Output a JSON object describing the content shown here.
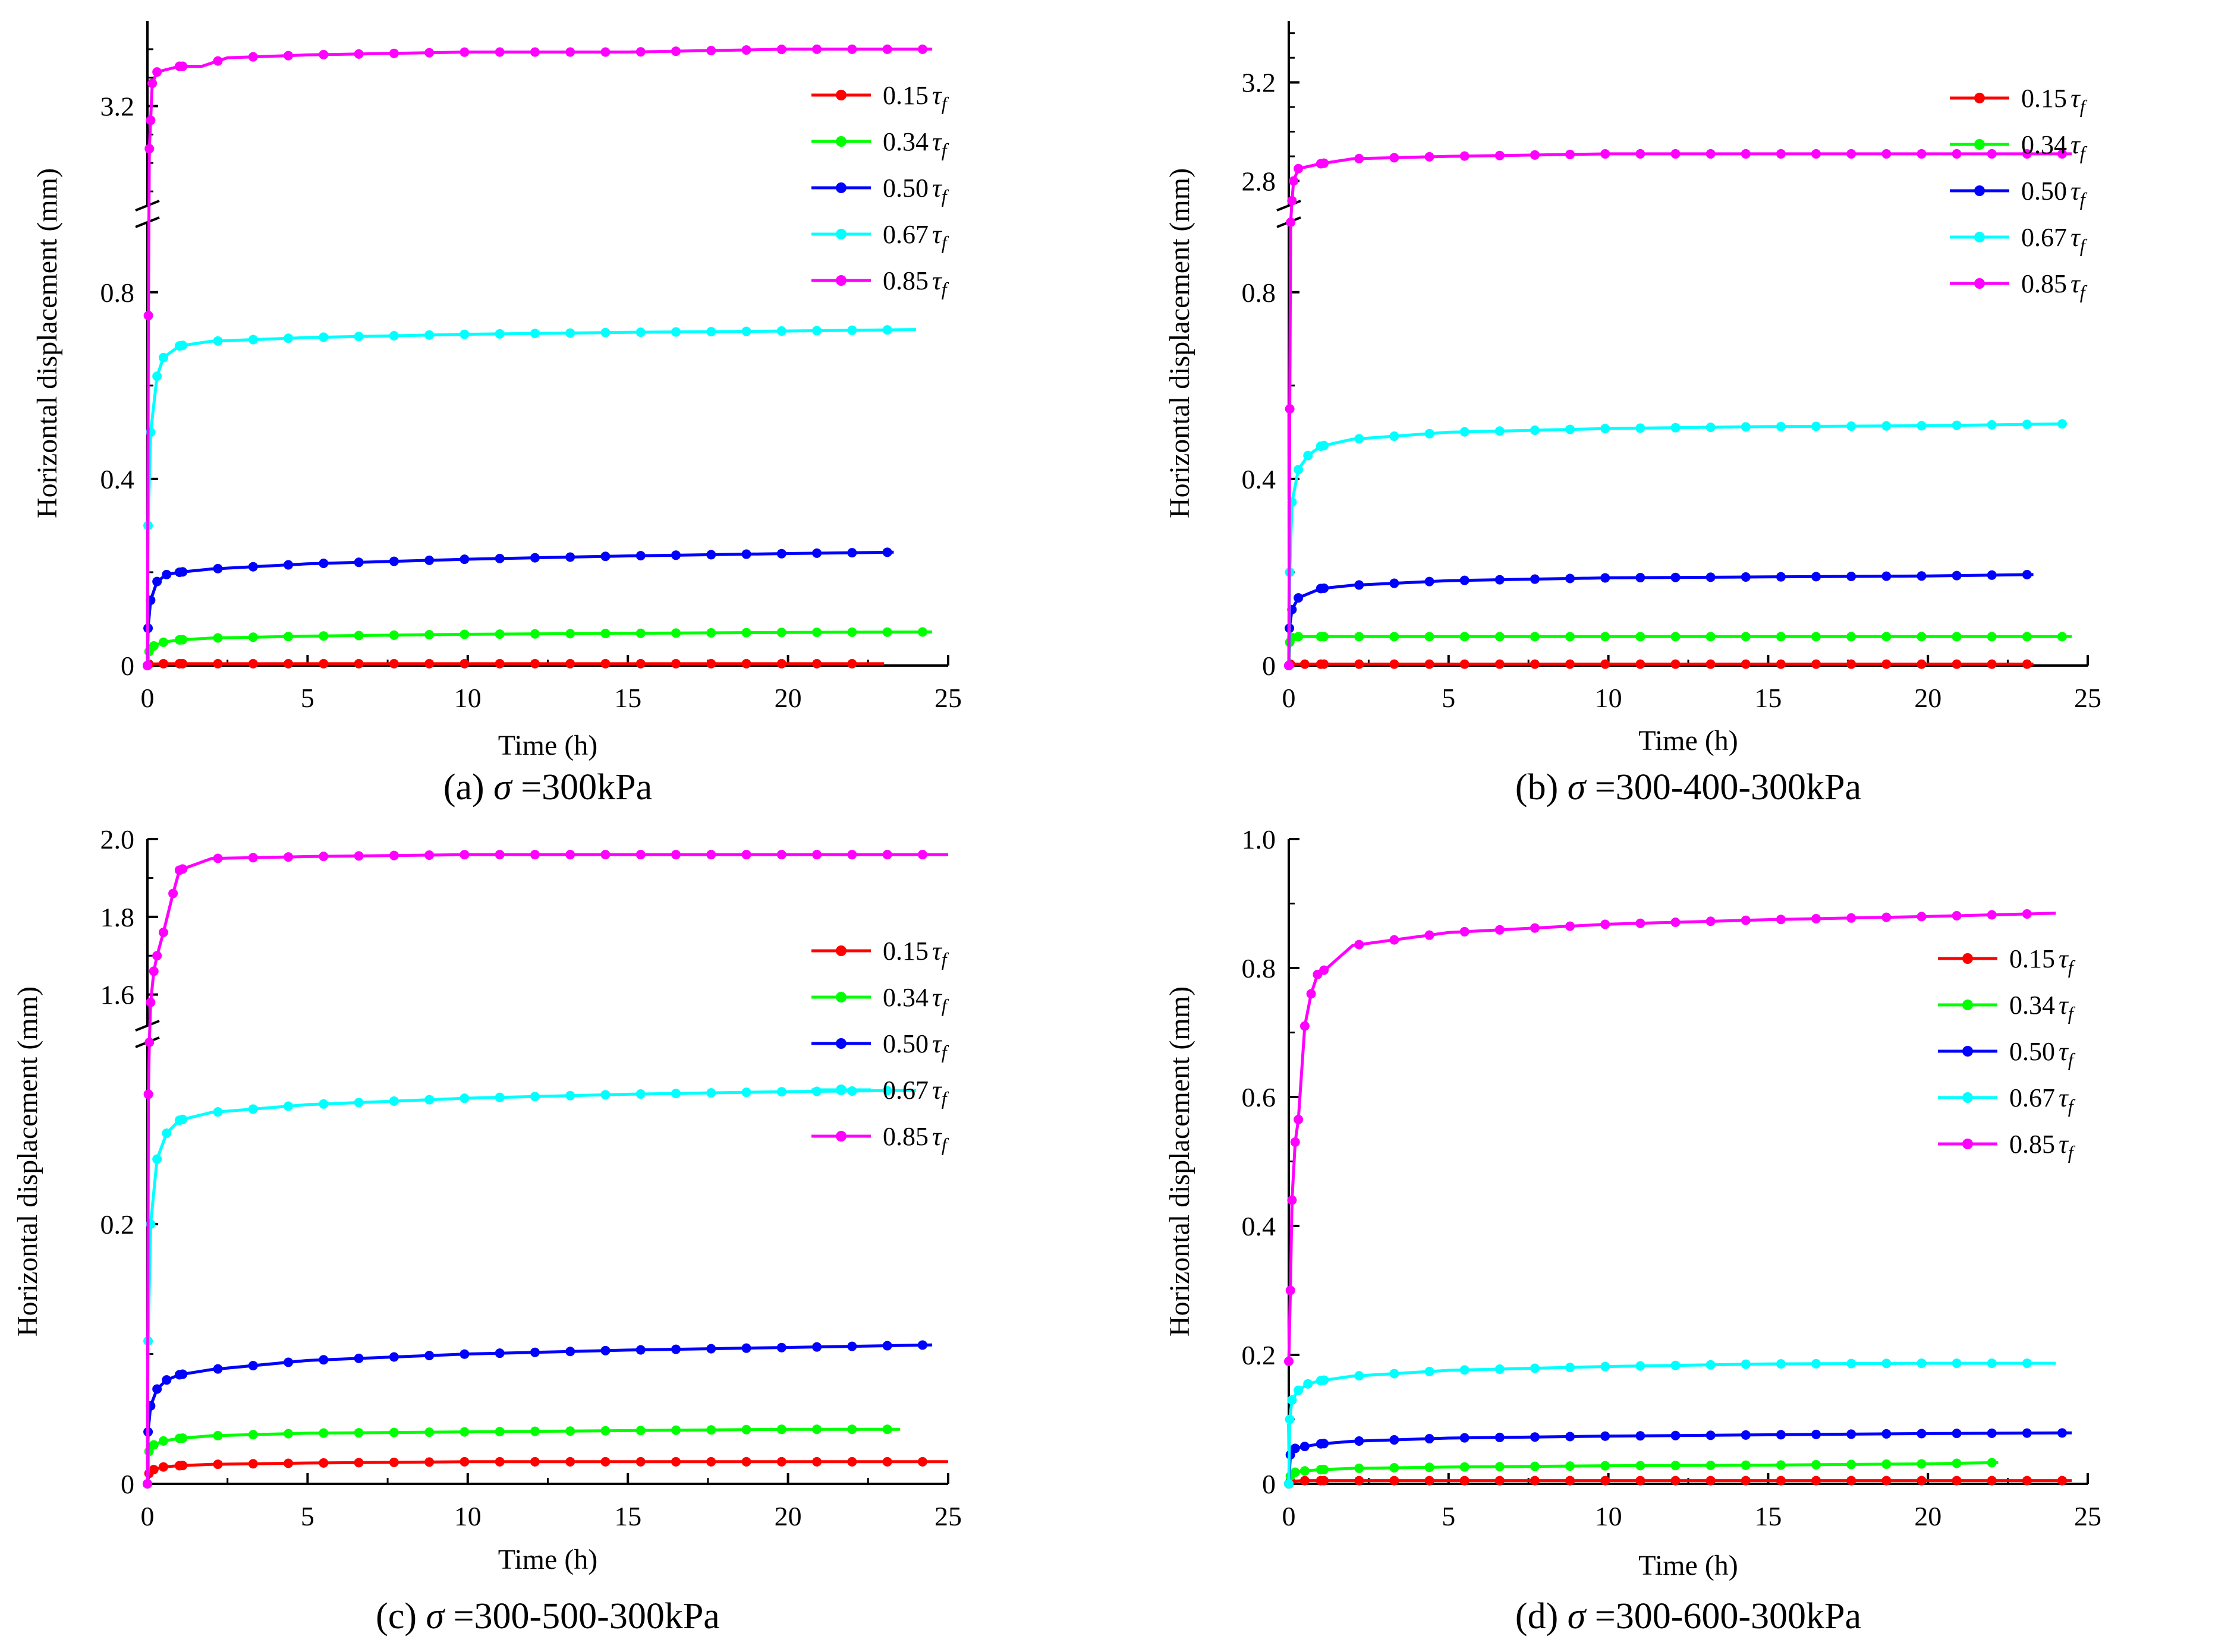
{
  "chart_data": [
    {
      "id": "a",
      "type": "line",
      "caption_prefix": "(a) ",
      "caption_sigma": "σ",
      "caption_value": " =300kPa",
      "xlabel": "Time (h)",
      "ylabel": "Horizontal displacement (mm)",
      "xlim": [
        0,
        25
      ],
      "xticks": [
        "0",
        "5",
        "10",
        "15",
        "20",
        "25"
      ],
      "broken_axis": true,
      "ylim_lower": [
        0,
        0.95
      ],
      "ylim_upper": [
        2.85,
        3.5
      ],
      "yticks_lower": [
        "0",
        "0.4",
        "0.8"
      ],
      "yticks_upper": [
        "3.2"
      ],
      "legend_position": "right",
      "series": [
        {
          "name": "0.15",
          "tau": "τ",
          "sub": "f",
          "color": "#ff0000",
          "x": [
            0,
            0.05,
            0.5,
            1,
            2,
            5,
            10,
            15,
            20,
            23
          ],
          "y": [
            0,
            0.003,
            0.004,
            0.004,
            0.004,
            0.004,
            0.004,
            0.004,
            0.004,
            0.004
          ]
        },
        {
          "name": "0.34",
          "tau": "τ",
          "sub": "f",
          "color": "#00ff00",
          "x": [
            0,
            0.05,
            0.2,
            0.5,
            1,
            2,
            5,
            10,
            15,
            20,
            24.5
          ],
          "y": [
            0,
            0.03,
            0.042,
            0.05,
            0.055,
            0.059,
            0.063,
            0.067,
            0.069,
            0.071,
            0.072
          ]
        },
        {
          "name": "0.50",
          "tau": "τ",
          "sub": "f",
          "color": "#0000ff",
          "x": [
            0,
            0.02,
            0.1,
            0.3,
            0.6,
            1,
            2,
            5,
            10,
            15,
            20,
            23.3
          ],
          "y": [
            0,
            0.08,
            0.14,
            0.18,
            0.195,
            0.2,
            0.207,
            0.218,
            0.228,
            0.235,
            0.24,
            0.243
          ]
        },
        {
          "name": "0.67",
          "tau": "τ",
          "sub": "f",
          "color": "#00ffff",
          "x": [
            0,
            0.02,
            0.1,
            0.3,
            0.5,
            1,
            2,
            5,
            10,
            15,
            20,
            24
          ],
          "y": [
            0,
            0.3,
            0.5,
            0.62,
            0.66,
            0.685,
            0.695,
            0.703,
            0.71,
            0.714,
            0.717,
            0.72
          ]
        },
        {
          "name": "0.85",
          "tau": "τ",
          "sub": "f",
          "color": "#ff00ff",
          "x": [
            0,
            0.03,
            0.06,
            0.1,
            0.15,
            0.3,
            1,
            1.7,
            2.5,
            5,
            10,
            15,
            20,
            24.5
          ],
          "y": [
            0,
            0.75,
            3.05,
            3.15,
            3.28,
            3.32,
            3.34,
            3.34,
            3.37,
            3.38,
            3.39,
            3.39,
            3.4,
            3.4
          ]
        }
      ]
    },
    {
      "id": "b",
      "type": "line",
      "caption_prefix": "(b) ",
      "caption_sigma": "σ",
      "caption_value": " =300-400-300kPa",
      "xlabel": "Time (h)",
      "ylabel": "Horizontal displacement (mm)",
      "xlim": [
        0,
        25
      ],
      "xticks": [
        "0",
        "5",
        "10",
        "15",
        "20",
        "25"
      ],
      "broken_axis": true,
      "ylim_lower": [
        0,
        0.95
      ],
      "ylim_upper": [
        2.7,
        3.45
      ],
      "yticks_lower": [
        "0",
        "0.4",
        "0.8"
      ],
      "yticks_upper": [
        "2.8",
        "3.2"
      ],
      "legend_position": "right",
      "series": [
        {
          "name": "0.15",
          "tau": "τ",
          "sub": "f",
          "color": "#ff0000",
          "x": [
            0,
            0.05,
            0.5,
            1,
            5,
            10,
            15,
            20,
            23.3
          ],
          "y": [
            0,
            0.003,
            0.003,
            0.003,
            0.003,
            0.003,
            0.003,
            0.003,
            0.003
          ]
        },
        {
          "name": "0.34",
          "tau": "τ",
          "sub": "f",
          "color": "#00ff00",
          "x": [
            0,
            0.03,
            0.1,
            0.3,
            1,
            5,
            10,
            15,
            20,
            24.5
          ],
          "y": [
            0,
            0.05,
            0.06,
            0.062,
            0.062,
            0.062,
            0.062,
            0.062,
            0.062,
            0.062
          ]
        },
        {
          "name": "0.50",
          "tau": "τ",
          "sub": "f",
          "color": "#0000ff",
          "x": [
            0,
            0.02,
            0.1,
            0.3,
            1,
            2,
            5,
            10,
            15,
            20,
            23.3
          ],
          "y": [
            0,
            0.08,
            0.12,
            0.145,
            0.165,
            0.172,
            0.182,
            0.188,
            0.19,
            0.192,
            0.195
          ]
        },
        {
          "name": "0.67",
          "tau": "τ",
          "sub": "f",
          "color": "#00ffff",
          "x": [
            0,
            0.03,
            0.1,
            0.3,
            0.6,
            1,
            2,
            5,
            10,
            15,
            20,
            24.3
          ],
          "y": [
            0,
            0.2,
            0.35,
            0.42,
            0.45,
            0.47,
            0.485,
            0.5,
            0.508,
            0.512,
            0.514,
            0.518
          ]
        },
        {
          "name": "0.85",
          "tau": "τ",
          "sub": "f",
          "color": "#ff00ff",
          "x": [
            0,
            0.03,
            0.06,
            0.1,
            0.15,
            0.3,
            1,
            2,
            5,
            10,
            15,
            20,
            24.5
          ],
          "y": [
            0,
            0.55,
            0.95,
            2.72,
            2.8,
            2.85,
            2.87,
            2.89,
            2.9,
            2.91,
            2.91,
            2.91,
            2.91
          ]
        }
      ]
    },
    {
      "id": "c",
      "type": "line",
      "caption_prefix": "(c) ",
      "caption_sigma": "σ",
      "caption_value": " =300-500-300kPa",
      "xlabel": "Time (h)",
      "ylabel": "Horizontal displacement (mm)",
      "xlim": [
        0,
        25
      ],
      "xticks": [
        "0",
        "5",
        "10",
        "15",
        "20",
        "25"
      ],
      "broken_axis": true,
      "ylim_lower": [
        0,
        0.34
      ],
      "ylim_upper": [
        1.52,
        2.0
      ],
      "yticks_lower": [
        "0",
        "0.2"
      ],
      "yticks_upper": [
        "1.6",
        "1.8",
        "2.0"
      ],
      "legend_position": "right",
      "series": [
        {
          "name": "0.15",
          "tau": "τ",
          "sub": "f",
          "color": "#ff0000",
          "x": [
            0,
            0.05,
            0.2,
            0.5,
            1,
            2,
            5,
            10,
            15,
            20,
            25
          ],
          "y": [
            0,
            0.008,
            0.011,
            0.013,
            0.014,
            0.015,
            0.016,
            0.017,
            0.017,
            0.017,
            0.017
          ]
        },
        {
          "name": "0.34",
          "tau": "τ",
          "sub": "f",
          "color": "#00ff00",
          "x": [
            0,
            0.05,
            0.2,
            0.5,
            1,
            2,
            5,
            10,
            15,
            20,
            23.5
          ],
          "y": [
            0,
            0.025,
            0.03,
            0.033,
            0.035,
            0.037,
            0.039,
            0.04,
            0.041,
            0.042,
            0.042
          ]
        },
        {
          "name": "0.50",
          "tau": "τ",
          "sub": "f",
          "color": "#0000ff",
          "x": [
            0,
            0.02,
            0.1,
            0.3,
            0.6,
            1,
            2,
            5,
            10,
            15,
            20,
            24.5
          ],
          "y": [
            0,
            0.04,
            0.06,
            0.073,
            0.08,
            0.084,
            0.088,
            0.095,
            0.1,
            0.103,
            0.105,
            0.107
          ]
        },
        {
          "name": "0.67",
          "tau": "τ",
          "sub": "f",
          "color": "#00ffff",
          "x": [
            0,
            0.02,
            0.1,
            0.3,
            0.6,
            1,
            2,
            5,
            10,
            15,
            20,
            24
          ],
          "y": [
            0,
            0.11,
            0.2,
            0.25,
            0.27,
            0.28,
            0.286,
            0.292,
            0.297,
            0.3,
            0.302,
            0.303
          ]
        },
        {
          "name": "0.85",
          "tau": "τ",
          "sub": "f",
          "color": "#ff00ff",
          "x": [
            0,
            0.03,
            0.06,
            0.1,
            0.2,
            0.3,
            0.5,
            0.8,
            1,
            2,
            5,
            10,
            15,
            20,
            25
          ],
          "y": [
            0,
            0.3,
            0.34,
            1.58,
            1.66,
            1.7,
            1.76,
            1.86,
            1.92,
            1.95,
            1.955,
            1.96,
            1.96,
            1.96,
            1.96
          ]
        }
      ]
    },
    {
      "id": "d",
      "type": "line",
      "caption_prefix": "(d) ",
      "caption_sigma": "σ",
      "caption_value": " =300-600-300kPa",
      "xlabel": "Time (h)",
      "ylabel": "Horizontal displacement (mm)",
      "xlim": [
        0,
        25
      ],
      "xticks": [
        "0",
        "5",
        "10",
        "15",
        "20",
        "25"
      ],
      "broken_axis": false,
      "ylim": [
        0,
        1.0
      ],
      "yticks": [
        "0",
        "0.2",
        "0.4",
        "0.6",
        "0.8",
        "1.0"
      ],
      "legend_position": "right",
      "series": [
        {
          "name": "0.15",
          "tau": "τ",
          "sub": "f",
          "color": "#ff0000",
          "x": [
            0,
            0.05,
            0.5,
            1,
            5,
            10,
            15,
            20,
            24.5
          ],
          "y": [
            0,
            0.004,
            0.005,
            0.005,
            0.005,
            0.005,
            0.005,
            0.005,
            0.005
          ]
        },
        {
          "name": "0.34",
          "tau": "τ",
          "sub": "f",
          "color": "#00ff00",
          "x": [
            0,
            0.05,
            0.2,
            0.5,
            1,
            2,
            5,
            10,
            15,
            20,
            22.2
          ],
          "y": [
            0,
            0.012,
            0.018,
            0.02,
            0.022,
            0.024,
            0.026,
            0.028,
            0.029,
            0.031,
            0.033
          ]
        },
        {
          "name": "0.50",
          "tau": "τ",
          "sub": "f",
          "color": "#0000ff",
          "x": [
            0,
            0.05,
            0.2,
            0.5,
            1,
            2,
            5,
            10,
            15,
            20,
            24.5
          ],
          "y": [
            0,
            0.045,
            0.055,
            0.058,
            0.062,
            0.066,
            0.071,
            0.074,
            0.076,
            0.078,
            0.079
          ]
        },
        {
          "name": "0.67",
          "tau": "τ",
          "sub": "f",
          "color": "#00ffff",
          "x": [
            0,
            0.03,
            0.1,
            0.3,
            0.6,
            1,
            2,
            5,
            10,
            15,
            20,
            24
          ],
          "y": [
            0,
            0.1,
            0.13,
            0.145,
            0.155,
            0.16,
            0.167,
            0.176,
            0.182,
            0.186,
            0.187,
            0.187
          ]
        },
        {
          "name": "0.85",
          "tau": "τ",
          "sub": "f",
          "color": "#ff00ff",
          "x": [
            0,
            0.05,
            0.1,
            0.2,
            0.3,
            0.5,
            0.7,
            0.9,
            1.2,
            2,
            5,
            10,
            15,
            20,
            24
          ],
          "y": [
            0.19,
            0.3,
            0.44,
            0.53,
            0.565,
            0.71,
            0.76,
            0.79,
            0.8,
            0.835,
            0.855,
            0.868,
            0.875,
            0.88,
            0.885
          ]
        }
      ]
    }
  ]
}
